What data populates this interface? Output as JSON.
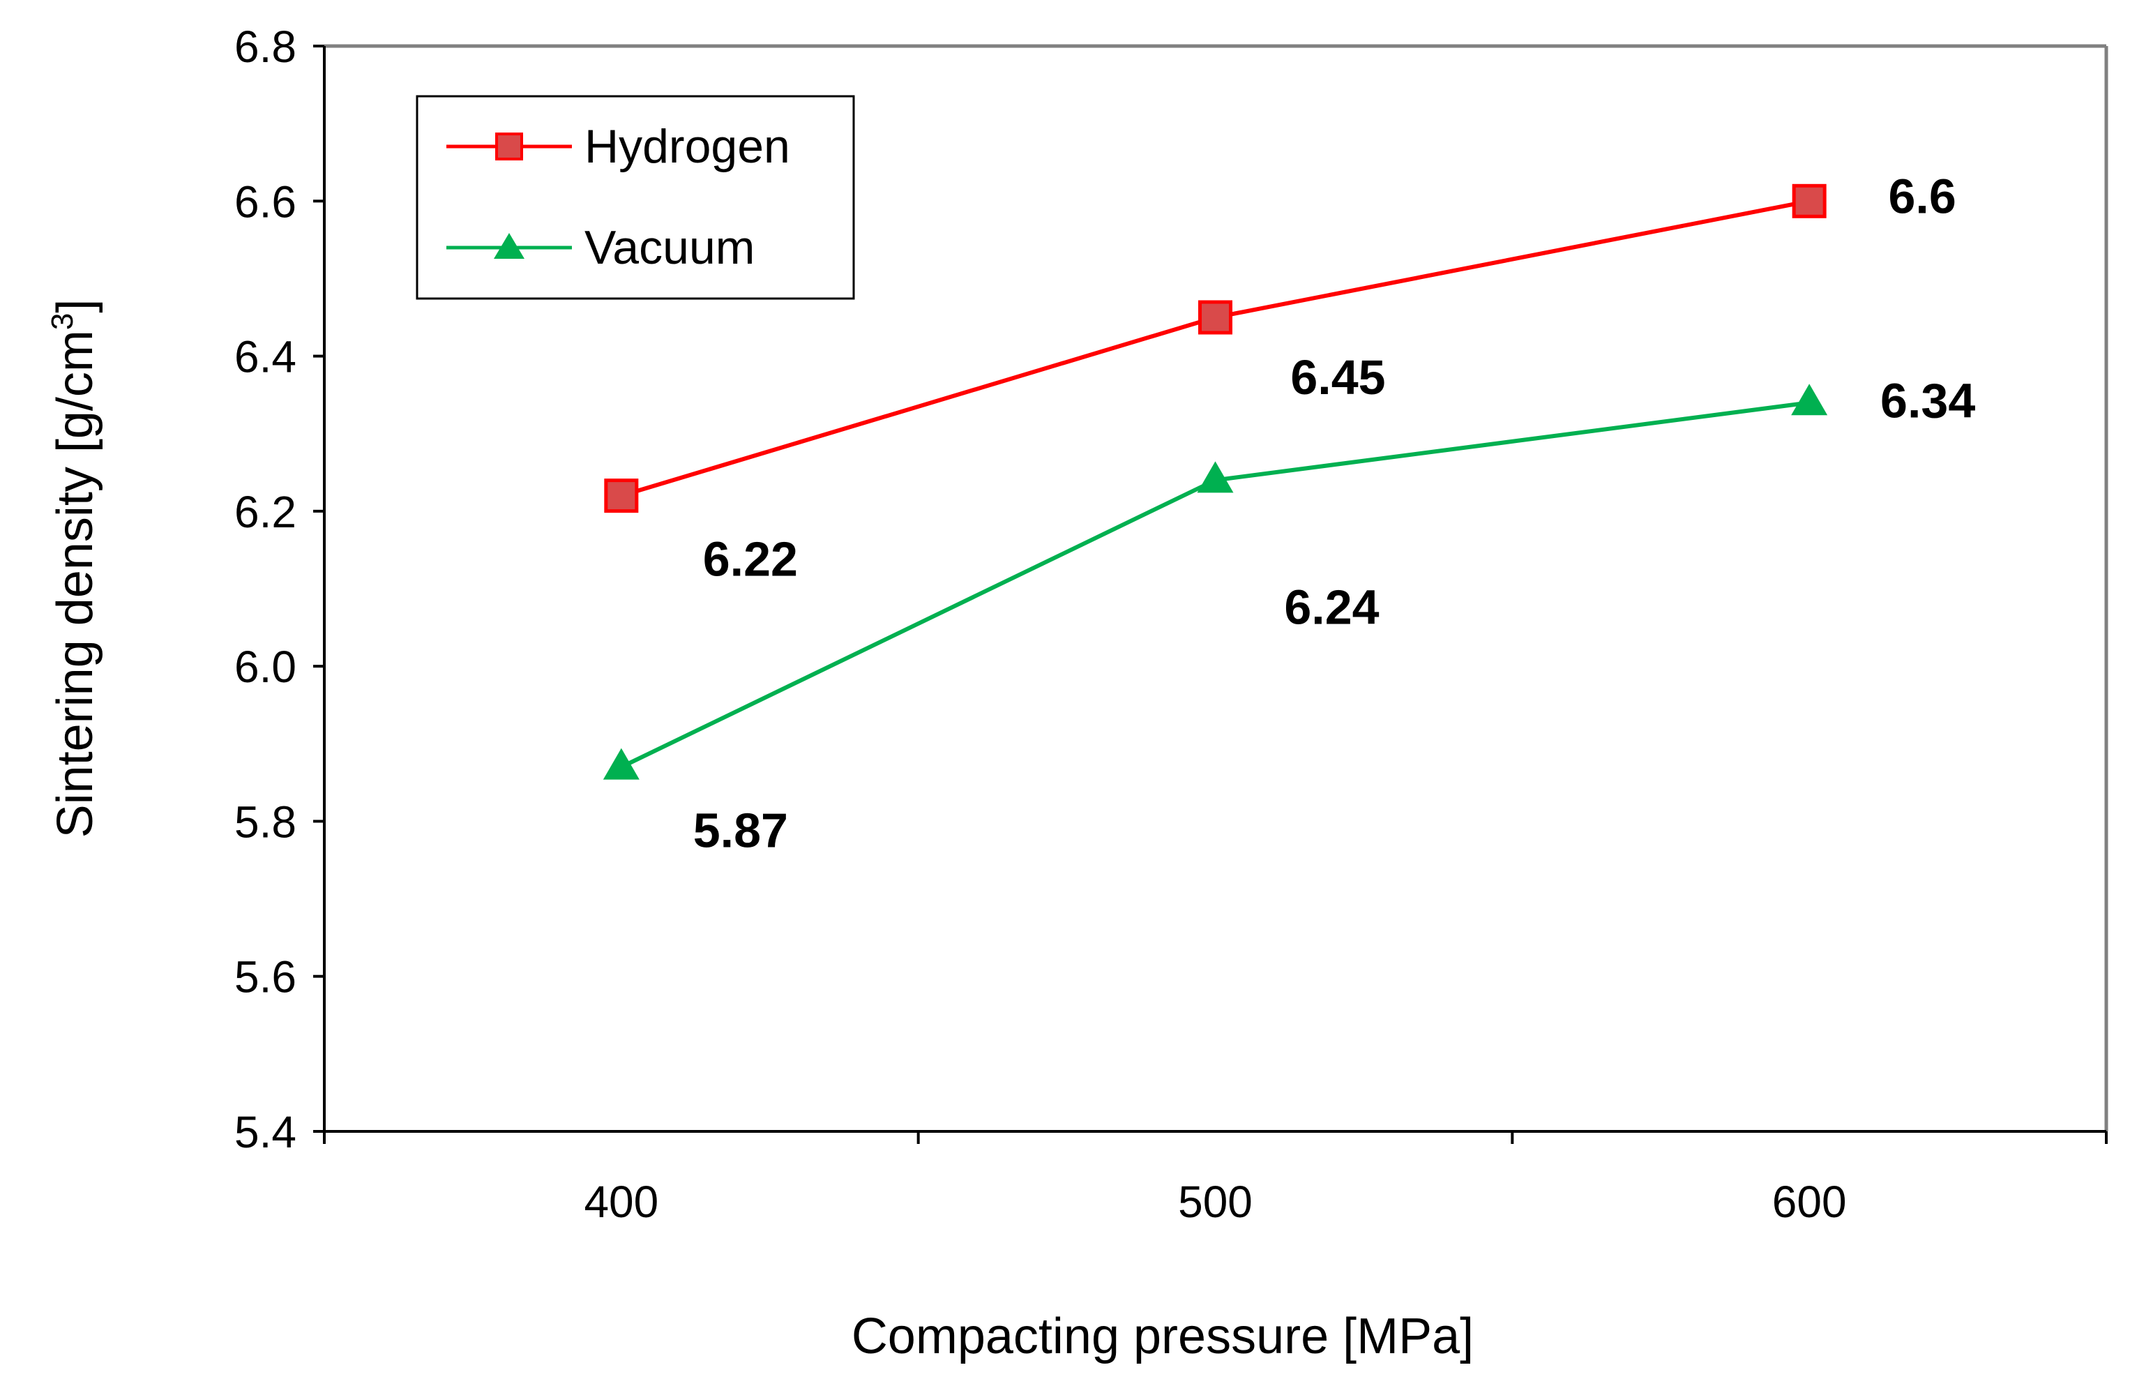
{
  "chart_data": {
    "type": "line",
    "title": "",
    "xlabel": "Compacting pressure [MPa]",
    "ylabel_main": "Sintering density [g/cm",
    "ylabel_sup": "3",
    "ylabel_close": "]",
    "categories": [
      "400",
      "500",
      "600"
    ],
    "x": [
      400,
      500,
      600
    ],
    "ylim": [
      5.4,
      6.8
    ],
    "yticks": [
      "5.4",
      "5.6",
      "5.8",
      "6.0",
      "6.2",
      "6.4",
      "6.6",
      "6.8"
    ],
    "ytick_values": [
      5.4,
      5.6,
      5.8,
      6.0,
      6.2,
      6.4,
      6.6,
      6.8
    ],
    "grid": false,
    "legend_position": "top-left",
    "series": [
      {
        "name": "Hydrogen",
        "values": [
          6.22,
          6.45,
          6.6
        ],
        "labels": [
          "6.22",
          "6.45",
          "6.6"
        ],
        "color": "#ff0000",
        "marker_fill": "#d94a4a",
        "marker": "square"
      },
      {
        "name": "Vacuum",
        "values": [
          5.87,
          6.24,
          6.34
        ],
        "labels": [
          "5.87",
          "6.24",
          "6.34"
        ],
        "color": "#00b050",
        "marker_fill": "#00b050",
        "marker": "triangle"
      }
    ]
  }
}
